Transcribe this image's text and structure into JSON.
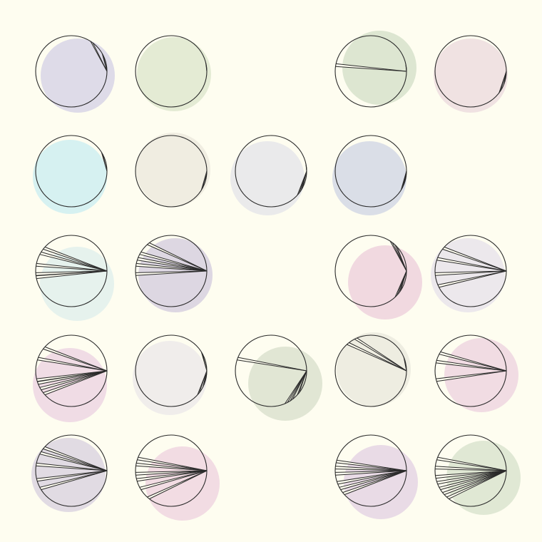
{
  "artwork": {
    "background": "#fefdf0",
    "stroke_color": "#2a2a2a",
    "grid": {
      "rows": 5,
      "columns": 5
    },
    "discs": [
      {
        "row": 0,
        "col": 0,
        "fill": "#c9c6e3",
        "off": [
          9,
          6
        ],
        "slices": [
          -55,
          -28
        ]
      },
      {
        "row": 0,
        "col": 1,
        "fill": "#d3e0c3",
        "off": [
          4,
          4
        ],
        "slices": [
          -12
        ]
      },
      {
        "row": 0,
        "col": 3,
        "fill": "#c8d8bf",
        "off": [
          12,
          -5
        ],
        "slices": [
          -170,
          -10
        ]
      },
      {
        "row": 0,
        "col": 4,
        "fill": "#e7d2da",
        "off": [
          0,
          6
        ],
        "slices": [
          20,
          35
        ]
      },
      {
        "row": 1,
        "col": 0,
        "fill": "#bdeaf2",
        "off": [
          -2,
          8
        ],
        "slices": [
          -30
        ]
      },
      {
        "row": 1,
        "col": 1,
        "fill": "#e6e3d9",
        "off": [
          3,
          -2
        ],
        "slices": [
          15,
          30
        ]
      },
      {
        "row": 1,
        "col": 2,
        "fill": "#dddfe8",
        "off": [
          -5,
          10
        ],
        "slices": [
          -10,
          30,
          40
        ]
      },
      {
        "row": 1,
        "col": 3,
        "fill": "#c4cbe2",
        "off": [
          -2,
          10
        ],
        "slices": [
          0,
          20,
          30
        ]
      },
      {
        "row": 2,
        "col": 0,
        "fill": "#d6ecec",
        "off": [
          8,
          18
        ],
        "slices": [
          -150,
          -140,
          -170,
          175,
          170
        ]
      },
      {
        "row": 2,
        "col": 1,
        "fill": "#c8c0da",
        "off": [
          6,
          6
        ],
        "slices": [
          -130,
          -150,
          -160,
          -170,
          175
        ]
      },
      {
        "row": 2,
        "col": 3,
        "fill": "#e8c4d6",
        "off": [
          20,
          16
        ],
        "slices": [
          -55,
          -45,
          35,
          45
        ]
      },
      {
        "row": 2,
        "col": 4,
        "fill": "#e0dcea",
        "off": [
          -4,
          6
        ],
        "slices": [
          -140,
          -160,
          175,
          155
        ]
      },
      {
        "row": 3,
        "col": 0,
        "fill": "#e6c8de",
        "off": [
          -2,
          20
        ],
        "slices": [
          -140,
          -160,
          160,
          150,
          140,
          165
        ]
      },
      {
        "row": 3,
        "col": 1,
        "fill": "#e6e3e8",
        "off": [
          -2,
          10
        ],
        "slices": [
          -30,
          40,
          25
        ]
      },
      {
        "row": 3,
        "col": 2,
        "fill": "#cfd8c4",
        "off": [
          20,
          18
        ],
        "slices": [
          -160,
          65,
          55,
          40
        ]
      },
      {
        "row": 3,
        "col": 3,
        "fill": "#e3e3d8",
        "off": [
          4,
          -2
        ],
        "slices": [
          -130,
          -115,
          -20
        ]
      },
      {
        "row": 3,
        "col": 4,
        "fill": "#e8c8dc",
        "off": [
          15,
          6
        ],
        "slices": [
          -150,
          -165,
          165
        ]
      },
      {
        "row": 4,
        "col": 0,
        "fill": "#cec6dc",
        "off": [
          -4,
          6
        ],
        "slices": [
          -150,
          -170,
          -140,
          165,
          150
        ]
      },
      {
        "row": 4,
        "col": 1,
        "fill": "#eac8dc",
        "off": [
          16,
          18
        ],
        "slices": [
          -170,
          -160,
          175,
          165,
          150,
          130
        ]
      },
      {
        "row": 4,
        "col": 3,
        "fill": "#dcc6e0",
        "off": [
          14,
          16
        ],
        "slices": [
          -165,
          -175,
          175,
          160,
          150,
          140
        ]
      },
      {
        "row": 4,
        "col": 4,
        "fill": "#cddbc4",
        "off": [
          18,
          10
        ],
        "slices": [
          -160,
          -175,
          170,
          160,
          150,
          140,
          130
        ]
      }
    ]
  }
}
